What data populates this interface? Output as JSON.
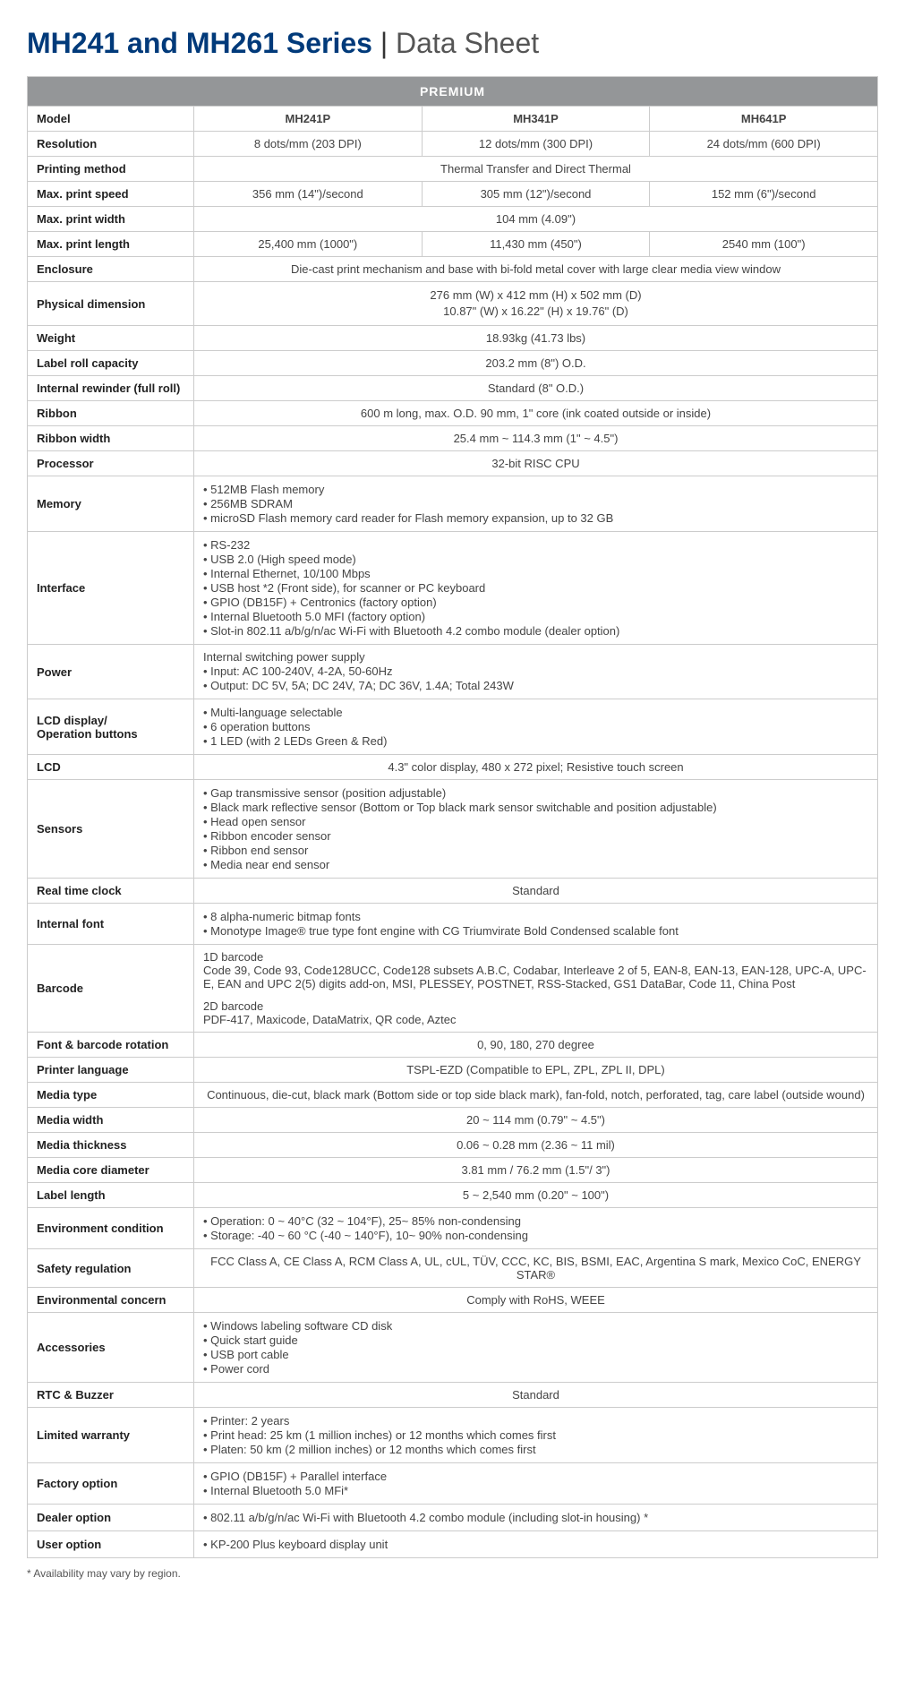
{
  "title": {
    "bold": "MH241 and MH261 Series",
    "pipe": " | ",
    "light": "Data Sheet"
  },
  "table": {
    "category_header": "PREMIUM",
    "col_widths": {
      "label": 186
    },
    "rows": [
      {
        "label": "Model",
        "cells": [
          "MH241P",
          "MH341P",
          "MH641P"
        ],
        "bold_cells": true
      },
      {
        "label": "Resolution",
        "cells": [
          "8 dots/mm (203 DPI)",
          "12 dots/mm (300 DPI)",
          "24 dots/mm (600 DPI)"
        ]
      },
      {
        "label": "Printing method",
        "span": "Thermal Transfer and Direct Thermal"
      },
      {
        "label": "Max. print speed",
        "cells": [
          "356 mm (14\")/second",
          "305 mm (12\")/second",
          "152 mm (6\")/second"
        ]
      },
      {
        "label": "Max. print width",
        "span": "104 mm (4.09\")"
      },
      {
        "label": "Max. print length",
        "cells": [
          "25,400 mm (1000\")",
          "11,430 mm (450\")",
          "2540 mm (100\")"
        ]
      },
      {
        "label": "Enclosure",
        "span": "Die-cast print mechanism and base with bi-fold metal cover with large clear media view window"
      },
      {
        "label": "Physical dimension",
        "span_multiline": [
          "276 mm (W) x 412 mm (H) x 502 mm (D)",
          "10.87\" (W) x 16.22\" (H) x 19.76\" (D)"
        ]
      },
      {
        "label": "Weight",
        "span": "18.93kg (41.73 lbs)"
      },
      {
        "label": "Label roll capacity",
        "span": "203.2 mm (8\") O.D."
      },
      {
        "label": "Internal rewinder (full roll)",
        "span": "Standard (8\" O.D.)"
      },
      {
        "label": "Ribbon",
        "span": "600 m long, max. O.D. 90 mm, 1\" core (ink coated outside or inside)"
      },
      {
        "label": "Ribbon width",
        "span": "25.4 mm ~ 114.3 mm (1\" ~ 4.5\")"
      },
      {
        "label": "Processor",
        "span": "32-bit RISC CPU"
      },
      {
        "label": "Memory",
        "bullets": [
          "512MB Flash memory",
          "256MB SDRAM",
          "microSD Flash memory card reader for Flash memory expansion, up to 32 GB"
        ]
      },
      {
        "label": "Interface",
        "bullets": [
          "RS-232",
          "USB 2.0 (High speed mode)",
          "Internal Ethernet, 10/100 Mbps",
          "USB host *2 (Front side), for scanner or PC keyboard",
          "GPIO (DB15F) + Centronics (factory option)",
          "Internal Bluetooth 5.0 MFI (factory option)",
          "Slot-in 802.11 a/b/g/n/ac Wi-Fi with Bluetooth 4.2 combo module (dealer option)"
        ]
      },
      {
        "label": "Power",
        "text_lines": [
          "Internal switching power supply"
        ],
        "bullets": [
          "Input: AC 100-240V, 4-2A, 50-60Hz",
          "Output: DC 5V, 5A; DC 24V, 7A; DC 36V, 1.4A; Total 243W"
        ]
      },
      {
        "label": "LCD display/\nOperation buttons",
        "bullets": [
          "Multi-language selectable",
          "6 operation buttons",
          "1 LED (with 2 LEDs Green & Red)"
        ]
      },
      {
        "label": "LCD",
        "span": "4.3\" color display, 480 x 272 pixel; Resistive touch screen"
      },
      {
        "label": "Sensors",
        "bullets": [
          "Gap transmissive sensor (position adjustable)",
          "Black mark reflective sensor (Bottom or Top black mark sensor switchable and position adjustable)",
          "Head open sensor",
          "Ribbon encoder sensor",
          "Ribbon end sensor",
          "Media near end sensor"
        ]
      },
      {
        "label": "Real time clock",
        "span": "Standard"
      },
      {
        "label": "Internal font",
        "bullets": [
          "8 alpha-numeric bitmap fonts",
          "Monotype Image® true type font engine with CG Triumvirate Bold Condensed scalable font"
        ]
      },
      {
        "label": "Barcode",
        "barcode": {
          "h1": "1D barcode",
          "t1": "Code 39, Code 93, Code128UCC, Code128 subsets A.B.C, Codabar, Interleave 2 of 5, EAN-8, EAN-13, EAN-128, UPC-A, UPC-E, EAN and UPC 2(5) digits add-on, MSI, PLESSEY, POSTNET, RSS-Stacked, GS1 DataBar, Code 11, China Post",
          "h2": "2D barcode",
          "t2": "PDF-417, Maxicode, DataMatrix, QR code, Aztec"
        }
      },
      {
        "label": "Font & barcode rotation",
        "span": "0, 90, 180, 270 degree"
      },
      {
        "label": "Printer language",
        "span": "TSPL-EZD (Compatible to EPL, ZPL, ZPL II, DPL)"
      },
      {
        "label": "Media type",
        "span": "Continuous, die-cut, black mark (Bottom side or top side black mark), fan-fold, notch, perforated, tag, care label (outside wound)"
      },
      {
        "label": "Media width",
        "span": "20 ~ 114 mm (0.79\" ~ 4.5\")"
      },
      {
        "label": "Media thickness",
        "span": "0.06 ~ 0.28 mm (2.36 ~ 11 mil)"
      },
      {
        "label": "Media core diameter",
        "span": "3.81 mm / 76.2 mm (1.5\"/ 3\")"
      },
      {
        "label": "Label length",
        "span": "5 ~ 2,540 mm (0.20\" ~ 100\")"
      },
      {
        "label": "Environment condition",
        "bullets": [
          "Operation: 0 ~ 40°C (32 ~ 104°F), 25~ 85% non-condensing",
          "Storage: -40 ~ 60 °C (-40 ~ 140°F), 10~ 90% non-condensing"
        ]
      },
      {
        "label": "Safety regulation",
        "span": "FCC Class A, CE Class A, RCM Class A, UL, cUL, TÜV, CCC, KC, BIS, BSMI, EAC, Argentina S mark, Mexico CoC, ENERGY STAR®"
      },
      {
        "label": "Environmental concern",
        "span": "Comply with RoHS, WEEE"
      },
      {
        "label": "Accessories",
        "bullets": [
          "Windows labeling software CD disk",
          "Quick start guide",
          "USB port cable",
          "Power cord"
        ]
      },
      {
        "label": "RTC & Buzzer",
        "span": "Standard"
      },
      {
        "label": "Limited warranty",
        "bullets": [
          "Printer: 2 years",
          "Print head: 25 km (1 million inches) or 12 months which comes first",
          "Platen: 50 km (2 million inches) or 12 months which comes first"
        ]
      },
      {
        "label": "Factory option",
        "bullets": [
          "GPIO (DB15F) + Parallel interface",
          "Internal Bluetooth 5.0 MFi*"
        ]
      },
      {
        "label": "Dealer option",
        "bullets": [
          "802.11 a/b/g/n/ac Wi-Fi with Bluetooth 4.2 combo module (including slot-in housing) *"
        ]
      },
      {
        "label": "User option",
        "bullets": [
          "KP-200 Plus keyboard display unit"
        ]
      }
    ]
  },
  "footnote": "* Availability may vary by region."
}
